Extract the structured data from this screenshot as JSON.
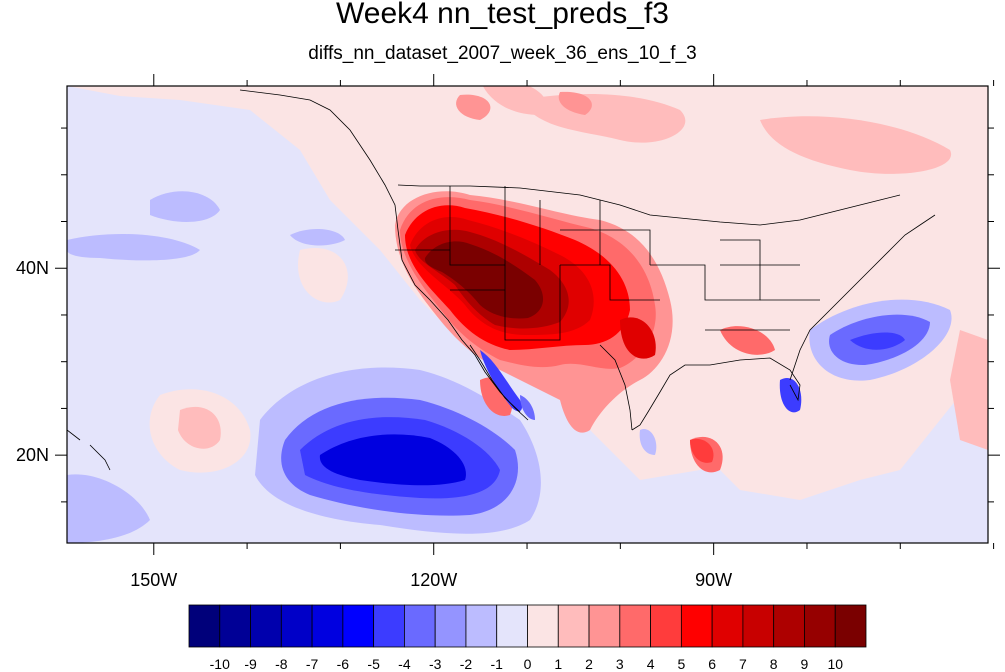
{
  "title": "Week4 nn_test_preds_f3",
  "subtitle": "diffs_nn_dataset_2007_week_36_ens_10_f_3",
  "map": {
    "x_ticks": [
      {
        "lon": -150,
        "label": "150W"
      },
      {
        "lon": -120,
        "label": "120W"
      },
      {
        "lon": -90,
        "label": "90W"
      }
    ],
    "y_ticks": [
      {
        "lat": 40,
        "label": "40N"
      },
      {
        "lat": 20,
        "label": "20N"
      }
    ],
    "lon_range": [
      -159.3,
      -60.6
    ],
    "lat_range": [
      10.6,
      59.5
    ]
  },
  "colorbar": {
    "labels": [
      "-10",
      "-9",
      "-8",
      "-7",
      "-6",
      "-5",
      "-4",
      "-3",
      "-2",
      "-1",
      "0",
      "1",
      "2",
      "3",
      "4",
      "5",
      "6",
      "7",
      "8",
      "9",
      "10"
    ],
    "colors": [
      "#00007a",
      "#000096",
      "#0000ad",
      "#0000c8",
      "#0000e0",
      "#0000ff",
      "#3c3cff",
      "#6a6aff",
      "#9494ff",
      "#bcbcff",
      "#e4e4fb",
      "#fbe4e4",
      "#ffbcbc",
      "#ff9494",
      "#ff6a6a",
      "#ff3c3c",
      "#ff0000",
      "#e00000",
      "#c80000",
      "#ad0000",
      "#960000",
      "#7a0000"
    ]
  },
  "chart_data": {
    "type": "heatmap",
    "title": "Week4 nn_test_preds_f3",
    "subtitle": "diffs_nn_dataset_2007_week_36_ens_10_f_3",
    "xlim": [
      -159.3,
      -60.6
    ],
    "ylim": [
      10.6,
      59.5
    ],
    "levels": [
      -10,
      -9,
      -8,
      -7,
      -6,
      -5,
      -4,
      -3,
      -2,
      -1,
      0,
      1,
      2,
      3,
      4,
      5,
      6,
      7,
      8,
      9,
      10
    ]
  }
}
